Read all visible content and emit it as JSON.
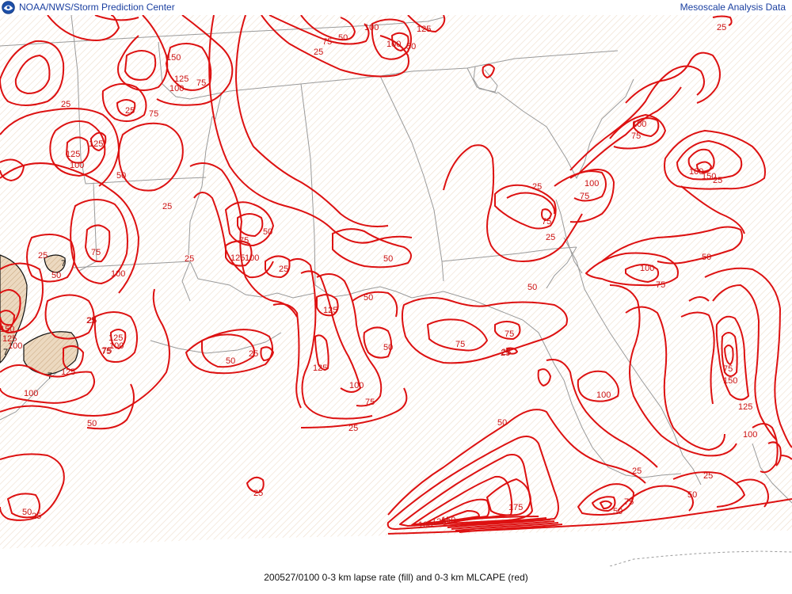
{
  "header": {
    "org_title": "NOAA/NWS/Storm Prediction Center",
    "product_title": "Mesoscale Analysis Data"
  },
  "caption": "200527/0100 0-3 km lapse rate (fill) and 0-3 km MLCAPE (red)",
  "colors": {
    "contour": "#dd1111",
    "border": "#9a9a9a",
    "lapse_fill": "#e9d6bd",
    "lapse_line": "#111111",
    "hatch": "#f0e0cf",
    "header_text": "#1a3fa0"
  },
  "icons": {
    "logo": "noaa-logo-icon"
  },
  "map": {
    "mlcape_labels": [
      {
        "text": "100"
      },
      {
        "text": "125"
      },
      {
        "text": "75"
      },
      {
        "text": "50"
      },
      {
        "text": "100"
      },
      {
        "text": "50"
      },
      {
        "text": "25"
      },
      {
        "text": "25"
      },
      {
        "text": "150"
      },
      {
        "text": "125"
      },
      {
        "text": "75"
      },
      {
        "text": "100"
      },
      {
        "text": "25"
      },
      {
        "text": "25"
      },
      {
        "text": "75"
      },
      {
        "text": "125"
      },
      {
        "text": "125"
      },
      {
        "text": "100"
      },
      {
        "text": "50"
      },
      {
        "text": "25"
      },
      {
        "text": "100"
      },
      {
        "text": "75"
      },
      {
        "text": "100"
      },
      {
        "text": "25"
      },
      {
        "text": "75"
      },
      {
        "text": "25"
      },
      {
        "text": "75"
      },
      {
        "text": "50"
      },
      {
        "text": "100"
      },
      {
        "text": "150"
      },
      {
        "text": "25"
      },
      {
        "text": "25"
      },
      {
        "text": "50"
      },
      {
        "text": "75"
      },
      {
        "text": "25"
      },
      {
        "text": "125"
      },
      {
        "text": "100"
      },
      {
        "text": "25"
      },
      {
        "text": "50"
      },
      {
        "text": "100"
      },
      {
        "text": "75"
      },
      {
        "text": "125"
      },
      {
        "text": "100"
      },
      {
        "text": "150"
      },
      {
        "text": "125"
      },
      {
        "text": "75"
      },
      {
        "text": "50"
      },
      {
        "text": "125"
      },
      {
        "text": "50"
      },
      {
        "text": "25"
      },
      {
        "text": "125"
      },
      {
        "text": "50"
      },
      {
        "text": "75"
      },
      {
        "text": "125"
      },
      {
        "text": "100"
      },
      {
        "text": "100"
      },
      {
        "text": "50"
      },
      {
        "text": "75"
      },
      {
        "text": "75"
      },
      {
        "text": "25"
      },
      {
        "text": "50"
      },
      {
        "text": "25"
      },
      {
        "text": "25"
      },
      {
        "text": "100"
      },
      {
        "text": "75"
      },
      {
        "text": "150"
      },
      {
        "text": "125"
      },
      {
        "text": "100"
      },
      {
        "text": "75"
      },
      {
        "text": "50"
      },
      {
        "text": "175"
      },
      {
        "text": "100"
      },
      {
        "text": "125"
      },
      {
        "text": "150"
      },
      {
        "text": "100"
      },
      {
        "text": "75"
      },
      {
        "text": "50"
      },
      {
        "text": "25"
      },
      {
        "text": "25"
      },
      {
        "text": "50"
      },
      {
        "text": "25"
      },
      {
        "text": "50"
      },
      {
        "text": "100"
      },
      {
        "text": "75"
      },
      {
        "text": "25"
      },
      {
        "text": "25"
      },
      {
        "text": "50"
      },
      {
        "text": "25"
      }
    ],
    "lapse_labels": [
      {
        "text": "7"
      },
      {
        "text": "7"
      },
      {
        "text": "7"
      }
    ]
  }
}
